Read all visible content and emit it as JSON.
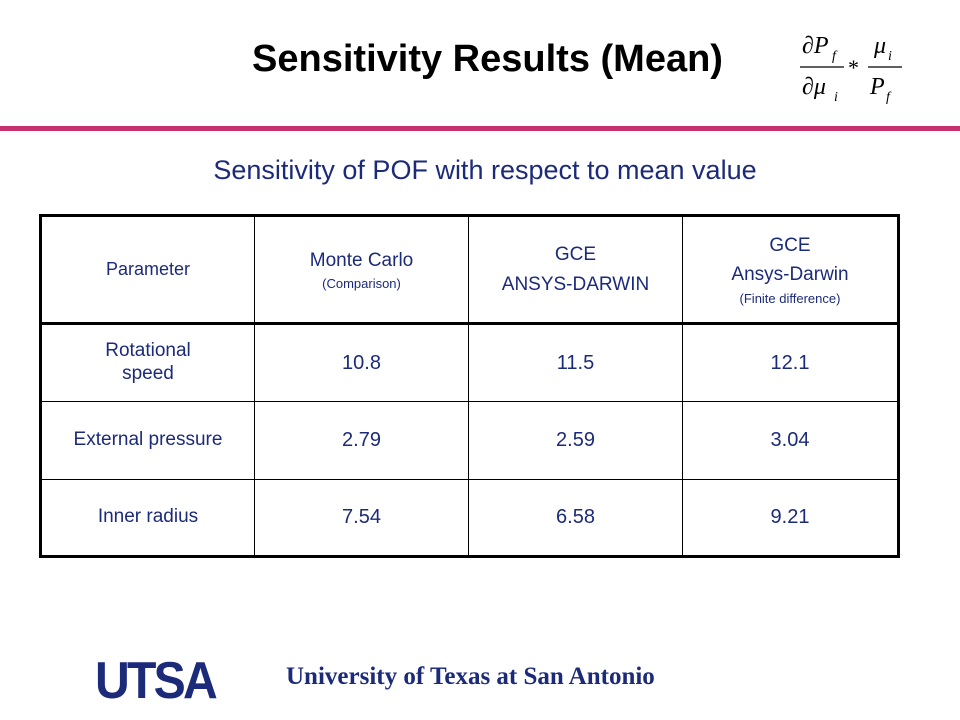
{
  "slide": {
    "title": "Sensitivity Results (Mean)",
    "subtitle": "Sensitivity of POF with respect to mean value",
    "footer": "University of Texas at San Antonio",
    "logo_text": "UTSA",
    "accent_color": "#c4326e",
    "text_color": "#1c2a7a"
  },
  "formula": {
    "num_left": "∂P",
    "num_left_sub": "f",
    "den_left": "∂μ",
    "den_left_sub": "i",
    "operator": "*",
    "num_right": "μ",
    "num_right_sub": "i",
    "den_right": "P",
    "den_right_sub": "f"
  },
  "table": {
    "headers": [
      {
        "main": "Parameter",
        "note": ""
      },
      {
        "main": "Monte Carlo",
        "note": "(Comparison)"
      },
      {
        "main": "GCE",
        "main2": "ANSYS-DARWIN",
        "note": ""
      },
      {
        "main": "GCE",
        "main2": "Ansys-Darwin",
        "note": "(Finite difference)"
      }
    ],
    "rows": [
      {
        "parameter": "Rotational speed",
        "monte_carlo": "10.8",
        "gce": "11.5",
        "gce_fd": "12.1"
      },
      {
        "parameter": "External pressure",
        "monte_carlo": "2.79",
        "gce": "2.59",
        "gce_fd": "3.04"
      },
      {
        "parameter": "Inner radius",
        "monte_carlo": "7.54",
        "gce": "6.58",
        "gce_fd": "9.21"
      }
    ]
  }
}
